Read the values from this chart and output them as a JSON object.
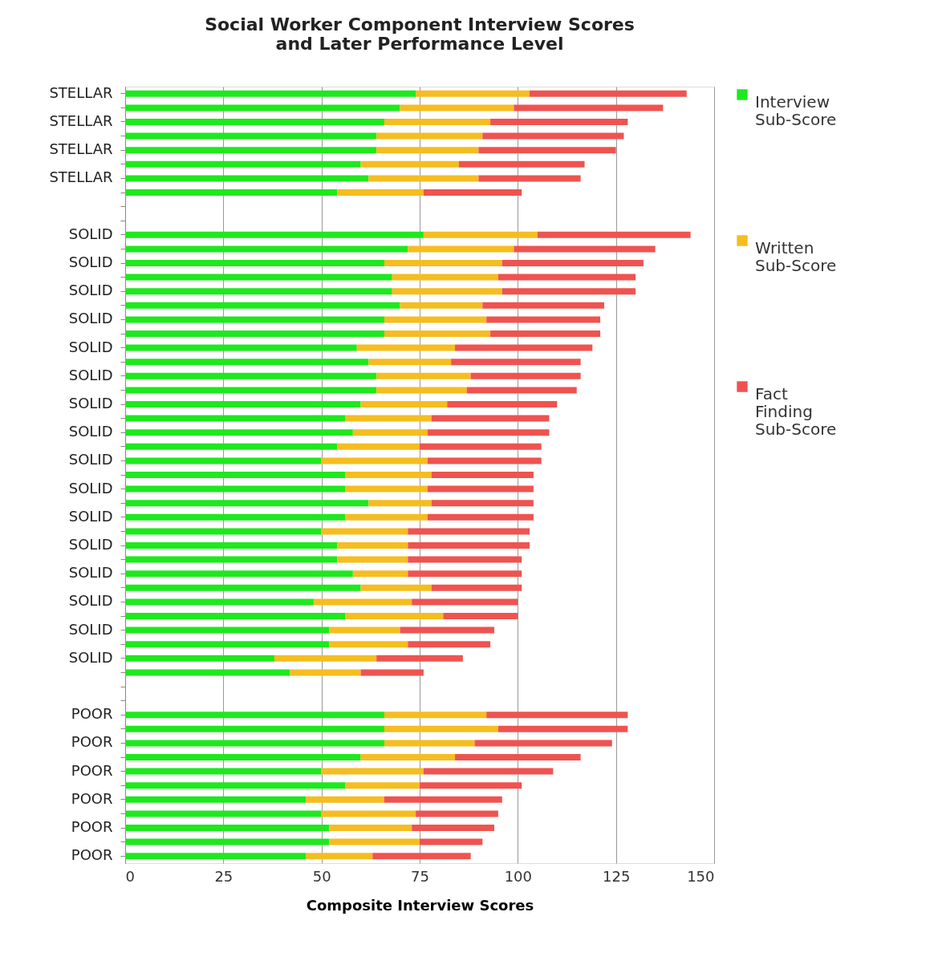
{
  "chart_data": {
    "type": "bar",
    "orientation": "horizontal",
    "stacked": true,
    "title": "Social Worker Component Interview Scores\nand Later Performance Level",
    "xlabel": "Composite Interview Scores",
    "categories": [
      "STELLAR",
      null,
      "STELLAR",
      null,
      "STELLAR",
      null,
      "STELLAR",
      null,
      null,
      null,
      "SOLID",
      null,
      "SOLID",
      null,
      "SOLID",
      null,
      "SOLID",
      null,
      "SOLID",
      null,
      "SOLID",
      null,
      "SOLID",
      null,
      "SOLID",
      null,
      "SOLID",
      null,
      "SOLID",
      null,
      "SOLID",
      null,
      "SOLID",
      null,
      "SOLID",
      null,
      "SOLID",
      null,
      "SOLID",
      null,
      "SOLID",
      null,
      null,
      null,
      "POOR",
      null,
      "POOR",
      null,
      "POOR",
      null,
      "POOR",
      null,
      "POOR",
      null,
      "POOR"
    ],
    "series": [
      {
        "name": "Interview Sub-Score",
        "color": "#1de91d",
        "values": [
          74,
          70,
          66,
          64,
          64,
          60,
          62,
          54,
          null,
          null,
          76,
          72,
          66,
          68,
          68,
          70,
          66,
          66,
          59,
          62,
          64,
          64,
          60,
          56,
          58,
          54,
          50,
          56,
          56,
          62,
          56,
          50,
          54,
          54,
          58,
          60,
          48,
          56,
          52,
          52,
          38,
          42,
          null,
          null,
          66,
          66,
          66,
          60,
          50,
          56,
          46,
          50,
          52,
          52,
          46
        ]
      },
      {
        "name": "Written Sub-Score",
        "color": "#f5bd1f",
        "values": [
          29,
          29,
          27,
          27,
          26,
          25,
          28,
          22,
          null,
          null,
          29,
          27,
          30,
          27,
          28,
          21,
          26,
          27,
          25,
          21,
          24,
          23,
          22,
          22,
          19,
          21,
          27,
          22,
          21,
          16,
          21,
          22,
          18,
          18,
          14,
          18,
          25,
          25,
          18,
          20,
          26,
          18,
          null,
          null,
          26,
          29,
          23,
          24,
          26,
          19,
          20,
          24,
          21,
          23,
          17
        ]
      },
      {
        "name": "Fact Finding Sub-Score",
        "color": "#ef5350",
        "values": [
          40,
          38,
          35,
          36,
          35,
          32,
          26,
          25,
          null,
          null,
          39,
          36,
          36,
          35,
          34,
          31,
          29,
          28,
          35,
          33,
          28,
          28,
          28,
          30,
          31,
          31,
          29,
          26,
          27,
          26,
          27,
          31,
          31,
          29,
          29,
          23,
          27,
          19,
          24,
          21,
          22,
          16,
          null,
          null,
          36,
          33,
          35,
          32,
          33,
          26,
          30,
          21,
          21,
          16,
          25
        ]
      }
    ],
    "xlim": [
      0,
      150
    ],
    "xticks": [
      0,
      25,
      50,
      75,
      100,
      125,
      150
    ],
    "grid": "x",
    "legend": "right"
  }
}
